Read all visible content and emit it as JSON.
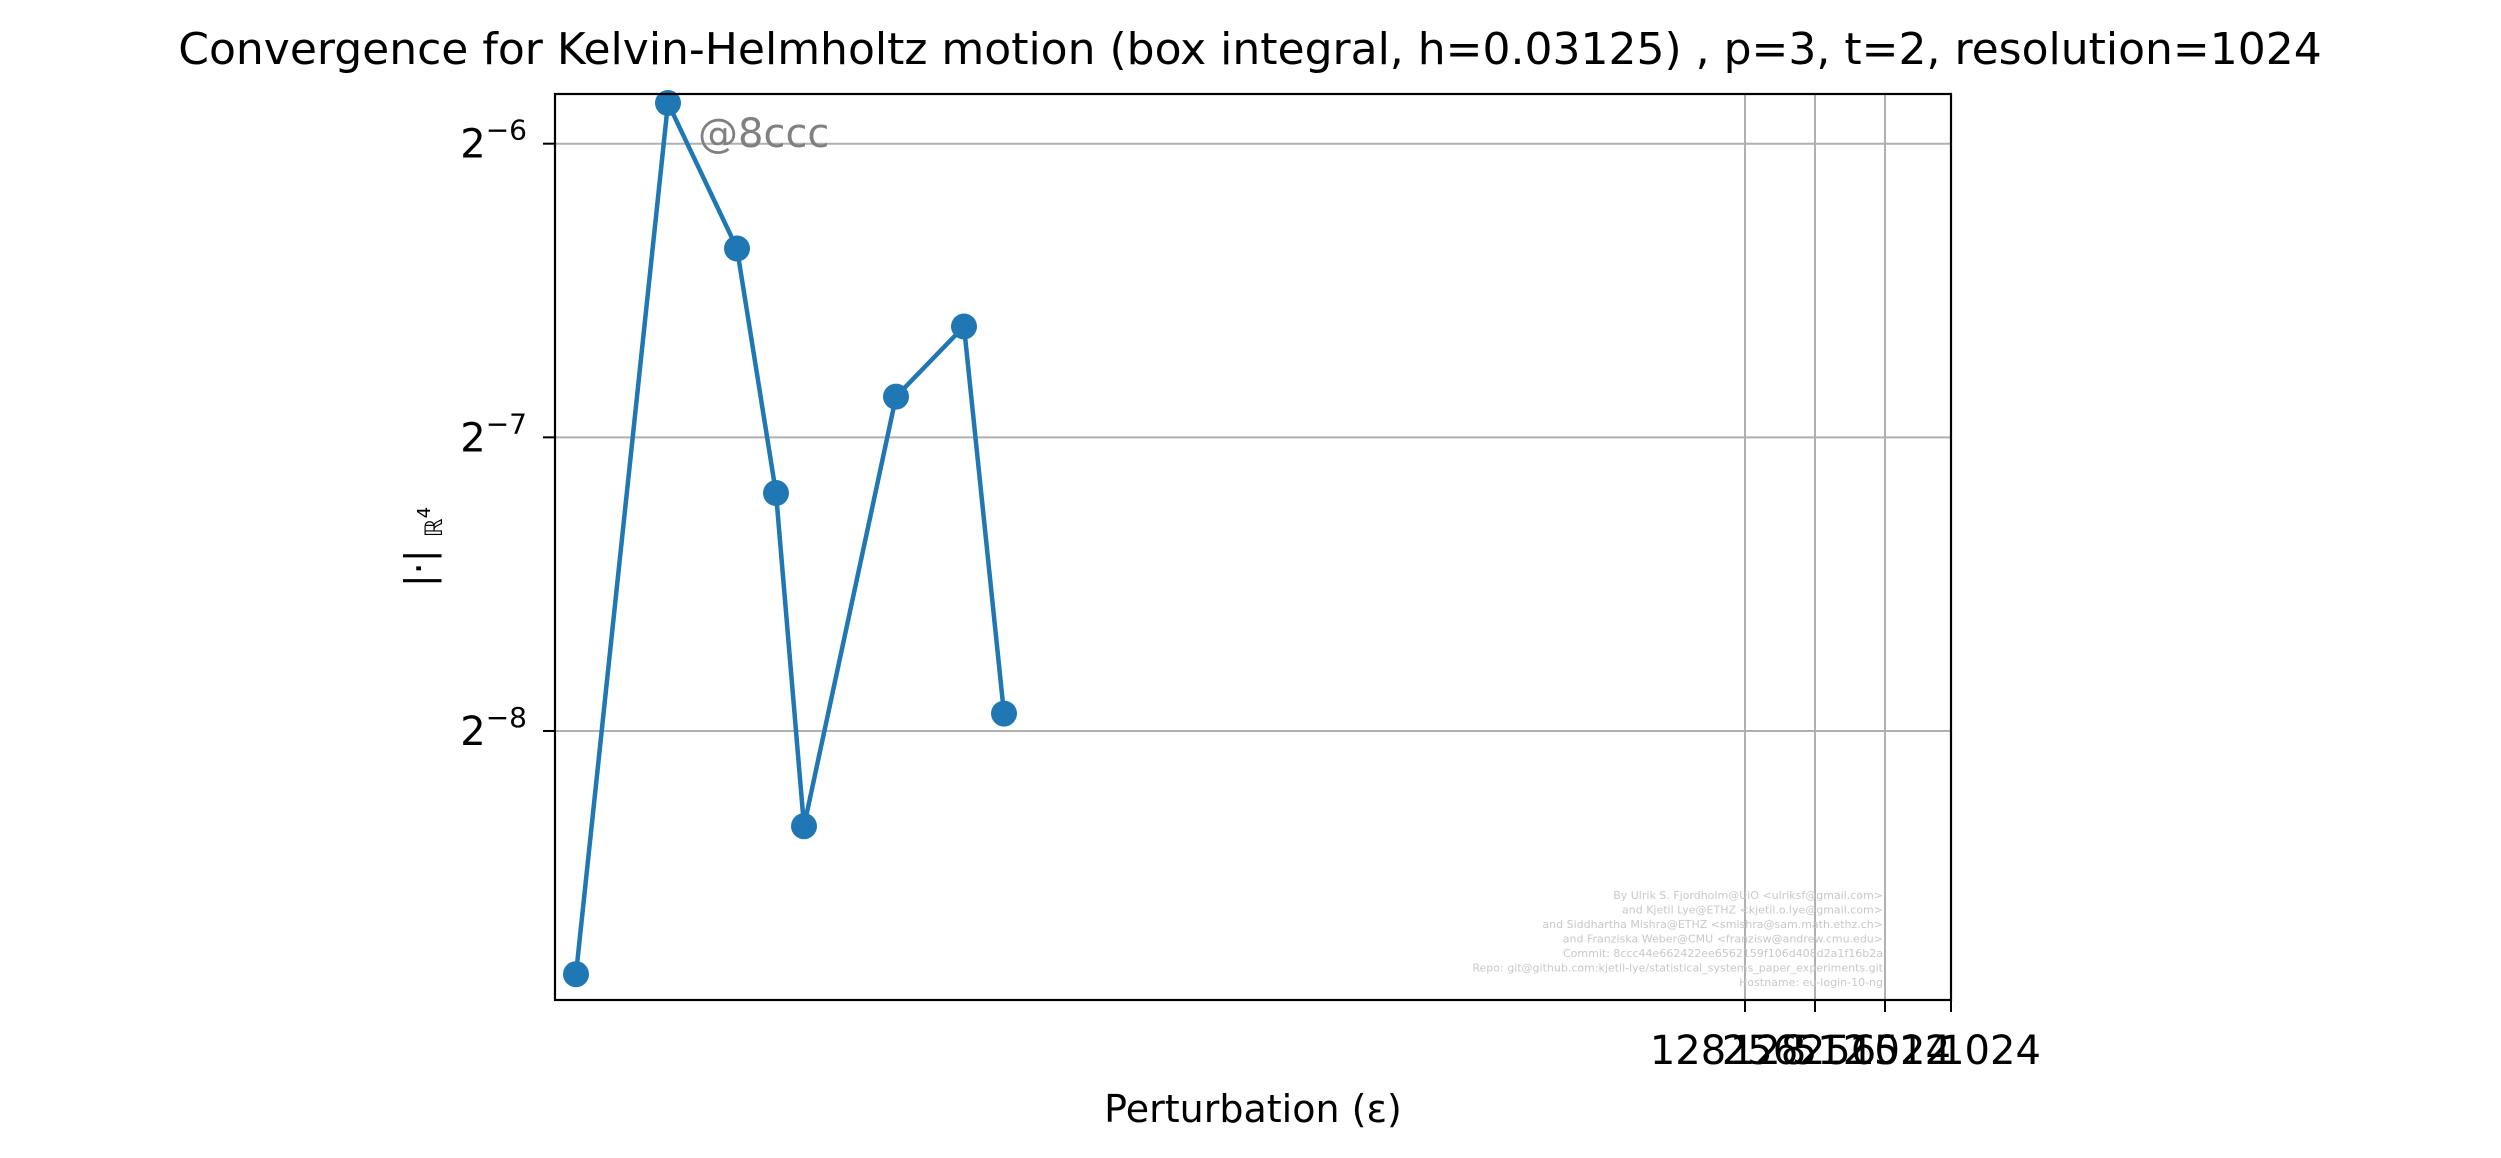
{
  "chart_data": {
    "type": "line",
    "title": "Convergence for Kelvin-Helmholtz motion (box integral, h=0.03125) , p=3, t=2, resolution=1024",
    "xlabel": "Perturbation (ε)",
    "ylabel": "||·||ℝ4",
    "yscale": "log2",
    "ylim": [
      0.00207,
      0.01757
    ],
    "y_ticks": [
      {
        "value": 0.015625,
        "base": "2",
        "exp": "−6"
      },
      {
        "value": 0.0078125,
        "base": "2",
        "exp": "−7"
      },
      {
        "value": 0.00390625,
        "base": "2",
        "exp": "−8"
      }
    ],
    "x_ticks": [
      "128",
      "256",
      "512",
      "1024",
      "128",
      "256",
      "512",
      "1024"
    ],
    "grid": true,
    "color": "#1f77b4",
    "series": [
      {
        "values": [
          0.0022,
          0.0172,
          0.0122,
          0.00685,
          0.00312,
          0.0086,
          0.01015,
          0.00407
        ]
      }
    ],
    "annotation": "@8ccc",
    "watermark": [
      "By Ulrik S. Fjordholm@UiO <ulriksf@gmail.com>",
      "and Kjetil Lye@ETHZ <kjetil.o.lye@gmail.com>",
      "and Siddhartha Mishra@ETHZ <smishra@sam.math.ethz.ch>",
      "and Franziska Weber@CMU <franzisw@andrew.cmu.edu>",
      "Commit: 8ccc44e662422ee6562159f106d408d2a1f16b2a",
      "Repo: git@github.com:kjetil-lye/statistical_systems_paper_experiments.git",
      "Hostname: eu-login-10-ng"
    ]
  }
}
